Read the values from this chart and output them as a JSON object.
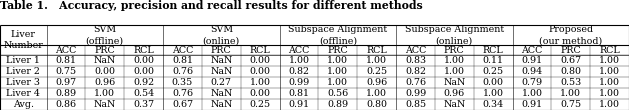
{
  "title": "Table 1.   Accuracy, precision and recall results for different methods",
  "group_labels_l1": [
    "SVM",
    "SVM",
    "Subspace Alignment",
    "Subspace Alignment",
    "Proposed"
  ],
  "group_labels_l2": [
    "(offline)",
    "(online)",
    "(offline)",
    "(online)",
    "(our method)"
  ],
  "col_labels": [
    "ACC",
    "PRC",
    "RCL"
  ],
  "row_header_l1": "Liver",
  "row_header_l2": "Number",
  "row_labels": [
    "Liver 1",
    "Liver 2",
    "Liver 3",
    "Liver 4",
    "Avg."
  ],
  "data": [
    [
      "0.81",
      "NaN",
      "0.00",
      "0.81",
      "NaN",
      "0.00",
      "1.00",
      "1.00",
      "1.00",
      "0.83",
      "1.00",
      "0.11",
      "0.91",
      "0.67",
      "1.00"
    ],
    [
      "0.75",
      "0.00",
      "0.00",
      "0.76",
      "NaN",
      "0.00",
      "0.82",
      "1.00",
      "0.25",
      "0.82",
      "1.00",
      "0.25",
      "0.94",
      "0.80",
      "1.00"
    ],
    [
      "0.97",
      "0.96",
      "0.92",
      "0.35",
      "0.27",
      "1.00",
      "0.99",
      "1.00",
      "0.96",
      "0.76",
      "NaN",
      "0.00",
      "0.79",
      "0.53",
      "1.00"
    ],
    [
      "0.89",
      "1.00",
      "0.54",
      "0.76",
      "NaN",
      "0.00",
      "0.81",
      "0.56",
      "1.00",
      "0.99",
      "0.96",
      "1.00",
      "1.00",
      "1.00",
      "1.00"
    ],
    [
      "0.86",
      "NaN",
      "0.37",
      "0.67",
      "NaN",
      "0.25",
      "0.91",
      "0.89",
      "0.80",
      "0.85",
      "NaN",
      "0.34",
      "0.91",
      "0.75",
      "1.00"
    ]
  ],
  "bg_color": "#ffffff",
  "title_fontsize": 7.8,
  "cell_fontsize": 6.8,
  "lw_heavy": 0.8,
  "lw_light": 0.4,
  "lw_inner": 0.25
}
